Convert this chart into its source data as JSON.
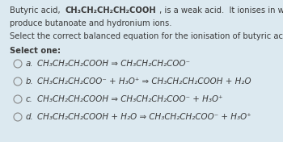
{
  "bg_color": "#dce9f0",
  "text_color": "#3a3a3a",
  "circle_color": "#888888",
  "font_size": 7.2,
  "font_size_opt": 7.4,
  "line1_pre": "Butyric acid,  ",
  "line1_formula": "CH₃CH₂CH₂CH₂COOH",
  "line1_post": " , is a weak acid.  It ionises in water to",
  "line2": "produce butanoate and hydronium ions.",
  "instruction": "Select the correct balanced equation for the ionisation of butyric acid:",
  "select_one": "Select one:",
  "options": [
    {
      "label": "a.",
      "eq": "CH₃CH₂CH₂COOH ⇒ CH₃CH₂CH₂COO⁻"
    },
    {
      "label": "b.",
      "eq": "CH₃CH₂CH₂COO⁻ + H₃O⁺ ⇒ CH₃CH₂CH₂COOH + H₂O"
    },
    {
      "label": "c.",
      "eq": "CH₃CH₂CH₂COOH ⇒ CH₃CH₂CH₂COO⁻ + H₃O⁺"
    },
    {
      "label": "d.",
      "eq": "CH₃CH₂CH₂COOH + H₂O ⇒ CH₃CH₂CH₂COO⁻ + H₃O⁺"
    }
  ]
}
